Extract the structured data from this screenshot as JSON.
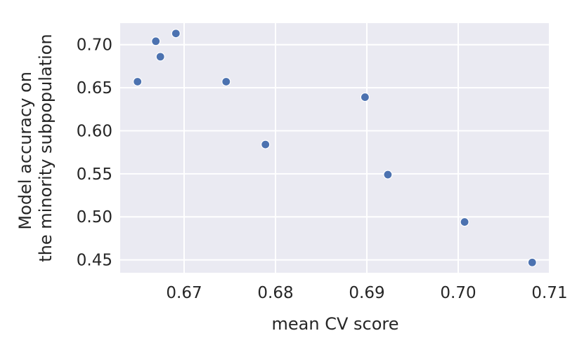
{
  "chart_data": {
    "type": "scatter",
    "xlabel": "mean CV score",
    "ylabel_lines": [
      "Model accuracy on",
      "the minority subpopulation"
    ],
    "xlim": [
      0.663,
      0.71
    ],
    "ylim": [
      0.435,
      0.725
    ],
    "x_ticks": [
      0.67,
      0.68,
      0.69,
      0.7,
      0.71
    ],
    "x_tick_labels": [
      "0.67",
      "0.68",
      "0.69",
      "0.70",
      "0.71"
    ],
    "y_ticks": [
      0.45,
      0.5,
      0.55,
      0.6,
      0.65,
      0.7
    ],
    "y_tick_labels": [
      "0.45",
      "0.50",
      "0.55",
      "0.60",
      "0.65",
      "0.70"
    ],
    "grid": true,
    "point_color": "#4c72b0",
    "background_color": "#eaeaf2",
    "points": [
      {
        "x": 0.6649,
        "y": 0.657
      },
      {
        "x": 0.6669,
        "y": 0.704
      },
      {
        "x": 0.6674,
        "y": 0.686
      },
      {
        "x": 0.6691,
        "y": 0.713
      },
      {
        "x": 0.6746,
        "y": 0.657
      },
      {
        "x": 0.6789,
        "y": 0.584
      },
      {
        "x": 0.6898,
        "y": 0.639
      },
      {
        "x": 0.6923,
        "y": 0.549
      },
      {
        "x": 0.7007,
        "y": 0.494
      },
      {
        "x": 0.7081,
        "y": 0.447
      }
    ]
  }
}
